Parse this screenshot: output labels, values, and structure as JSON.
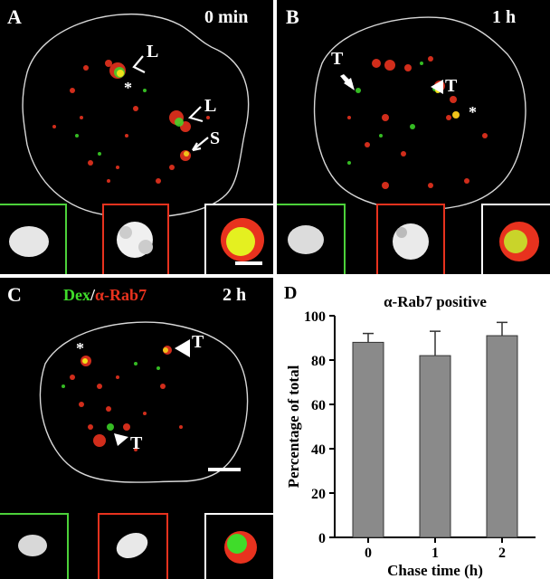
{
  "panels": {
    "A": {
      "label": "A",
      "time": "0 min",
      "annotations": [
        "L",
        "L",
        "S",
        "*"
      ]
    },
    "B": {
      "label": "B",
      "time": "1 h",
      "annotations": [
        "T",
        "T",
        "*"
      ]
    },
    "C": {
      "label": "C",
      "time": "2 h",
      "legend_dex": "Dex",
      "legend_sep": "/",
      "legend_rab": "α-Rab7",
      "annotations": [
        "T",
        "T",
        "*"
      ]
    },
    "D": {
      "label": "D"
    }
  },
  "colors": {
    "green": "#3fdc2a",
    "red": "#e8321e",
    "inset_red": "#e8321e",
    "inset_green": "#4cd13a",
    "inset_white": "#ffffff",
    "bar": "#8a8a8a"
  },
  "chart_data": {
    "type": "bar",
    "title": "α-Rab7 positive",
    "xlabel": "Chase time (h)",
    "ylabel": "Percentage of total",
    "categories": [
      "0",
      "1",
      "2"
    ],
    "values": [
      88,
      82,
      91
    ],
    "errors": [
      4,
      11,
      6
    ],
    "ylim": [
      0,
      100
    ],
    "yticks": [
      "0",
      "20",
      "40",
      "60",
      "80",
      "100"
    ]
  }
}
